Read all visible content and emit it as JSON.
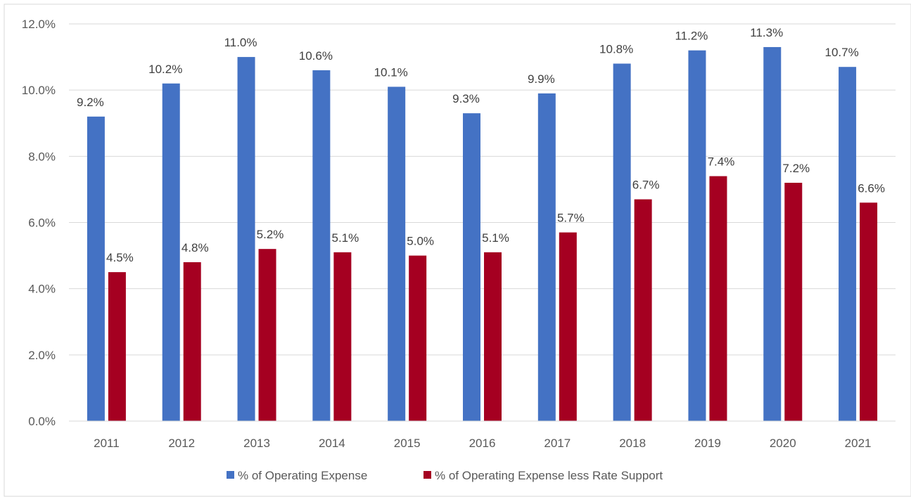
{
  "chart_data": {
    "type": "bar",
    "categories": [
      "2011",
      "2012",
      "2013",
      "2014",
      "2015",
      "2016",
      "2017",
      "2018",
      "2019",
      "2020",
      "2021"
    ],
    "series": [
      {
        "name": "% of Operating Expense",
        "color": "#4472C4",
        "values": [
          9.2,
          10.2,
          11.0,
          10.6,
          10.1,
          9.3,
          9.9,
          10.8,
          11.2,
          11.3,
          10.7
        ],
        "labels": [
          "9.2%",
          "10.2%",
          "11.0%",
          "10.6%",
          "10.1%",
          "9.3%",
          "9.9%",
          "10.8%",
          "11.2%",
          "11.3%",
          "10.7%"
        ]
      },
      {
        "name": "% of Operating Expense less Rate Support",
        "color": "#A50021",
        "values": [
          4.5,
          4.8,
          5.2,
          5.1,
          5.0,
          5.1,
          5.7,
          6.7,
          7.4,
          7.2,
          6.6
        ],
        "labels": [
          "4.5%",
          "4.8%",
          "5.2%",
          "5.1%",
          "5.0%",
          "5.1%",
          "5.7%",
          "6.7%",
          "7.4%",
          "7.2%",
          "6.6%"
        ]
      }
    ],
    "y_ticks": [
      "0.0%",
      "2.0%",
      "4.0%",
      "6.0%",
      "8.0%",
      "10.0%",
      "12.0%"
    ],
    "ylim": [
      0,
      12
    ],
    "grid": true,
    "legend_position": "bottom"
  }
}
